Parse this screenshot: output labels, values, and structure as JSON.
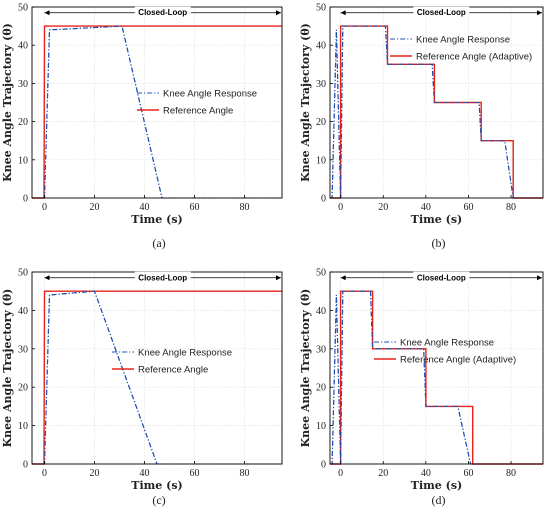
{
  "chart_data": [
    {
      "type": "line",
      "caption": "(a)",
      "xlabel": "Time (s)",
      "ylabel": "Knee Angle Trajectory (θ)",
      "xlim": [
        -5,
        95
      ],
      "ylim": [
        0,
        50
      ],
      "xticks": [
        0,
        20,
        40,
        60,
        80
      ],
      "yticks": [
        0,
        10,
        20,
        30,
        40,
        50
      ],
      "grid": true,
      "legend_position": "right",
      "annotation": {
        "text": "Closed-Loop",
        "x_start": 0,
        "x_end": 95,
        "y": 48.5
      },
      "series": [
        {
          "name": "Knee Angle Response",
          "color": "#1f4fb4",
          "style": "dashdot",
          "x": [
            -5,
            0,
            2,
            31,
            47,
            95
          ],
          "y": [
            0,
            0,
            44,
            45,
            0,
            0
          ]
        },
        {
          "name": "Reference Angle",
          "color": "#e8221a",
          "style": "solid",
          "x": [
            -5,
            -0.2,
            0,
            95
          ],
          "y": [
            0,
            0,
            45,
            45
          ]
        }
      ]
    },
    {
      "type": "line",
      "caption": "(b)",
      "xlabel": "Time (s)",
      "ylabel": "Knee Angle Trajectory (θ)",
      "xlim": [
        -5,
        95
      ],
      "ylim": [
        0,
        50
      ],
      "xticks": [
        0,
        20,
        40,
        60,
        80
      ],
      "yticks": [
        0,
        10,
        20,
        30,
        40,
        50
      ],
      "grid": true,
      "legend_position": "top-right",
      "annotation": {
        "text": "Closed-Loop",
        "x_start": 0,
        "x_end": 95,
        "y": 48.5
      },
      "series": [
        {
          "name": "Knee Angle Response",
          "color": "#1f4fb4",
          "style": "dashdot",
          "x": [
            -5,
            -4,
            -2,
            0,
            1,
            21,
            22,
            43,
            44,
            65,
            66,
            77,
            81,
            95
          ],
          "y": [
            0,
            0,
            44,
            0,
            45,
            45,
            35,
            35,
            25,
            25,
            15,
            15,
            0,
            0
          ]
        },
        {
          "name": "Reference Angle (Adaptive)",
          "color": "#e8221a",
          "style": "solid",
          "x": [
            -5,
            0,
            0,
            22,
            22,
            44,
            44,
            66,
            66,
            81,
            81,
            95
          ],
          "y": [
            0,
            0,
            45,
            45,
            35,
            35,
            25,
            25,
            15,
            15,
            0,
            0
          ]
        }
      ]
    },
    {
      "type": "line",
      "caption": "(c)",
      "xlabel": "Time (s)",
      "ylabel": "Knee Angle Trajectory (θ)",
      "xlim": [
        -5,
        95
      ],
      "ylim": [
        0,
        50
      ],
      "xticks": [
        0,
        20,
        40,
        60,
        80
      ],
      "yticks": [
        0,
        10,
        20,
        30,
        40,
        50
      ],
      "grid": true,
      "legend_position": "right",
      "annotation": {
        "text": "Closed-Loop",
        "x_start": 0,
        "x_end": 95,
        "y": 48.5
      },
      "series": [
        {
          "name": "Knee Angle Response",
          "color": "#1f4fb4",
          "style": "dashdot",
          "x": [
            -5,
            0,
            2,
            20,
            45,
            95
          ],
          "y": [
            0,
            0,
            44,
            45,
            0,
            0
          ]
        },
        {
          "name": "Reference Angle",
          "color": "#e8221a",
          "style": "solid",
          "x": [
            -5,
            -0.2,
            0,
            95
          ],
          "y": [
            0,
            0,
            45,
            45
          ]
        }
      ]
    },
    {
      "type": "line",
      "caption": "(d)",
      "xlabel": "Time (s)",
      "ylabel": "Knee Angle Trajectory (θ)",
      "xlim": [
        -5,
        95
      ],
      "ylim": [
        0,
        50
      ],
      "xticks": [
        0,
        20,
        40,
        60,
        80
      ],
      "yticks": [
        0,
        10,
        20,
        30,
        40,
        50
      ],
      "grid": true,
      "legend_position": "right",
      "annotation": {
        "text": "Closed-Loop",
        "x_start": 0,
        "x_end": 95,
        "y": 48.5
      },
      "series": [
        {
          "name": "Knee Angle Response",
          "color": "#1f4fb4",
          "style": "dashdot",
          "x": [
            -5,
            -4,
            -2,
            0,
            1,
            14,
            15,
            39,
            40,
            55,
            61,
            95
          ],
          "y": [
            0,
            0,
            44,
            0,
            45,
            45,
            30,
            30,
            15,
            15,
            0,
            0
          ]
        },
        {
          "name": "Reference Angle (Adaptive)",
          "color": "#e8221a",
          "style": "solid",
          "x": [
            -5,
            0,
            0,
            15,
            15,
            40,
            40,
            62,
            62,
            95
          ],
          "y": [
            0,
            0,
            45,
            45,
            30,
            30,
            15,
            15,
            0,
            0
          ]
        }
      ]
    }
  ]
}
